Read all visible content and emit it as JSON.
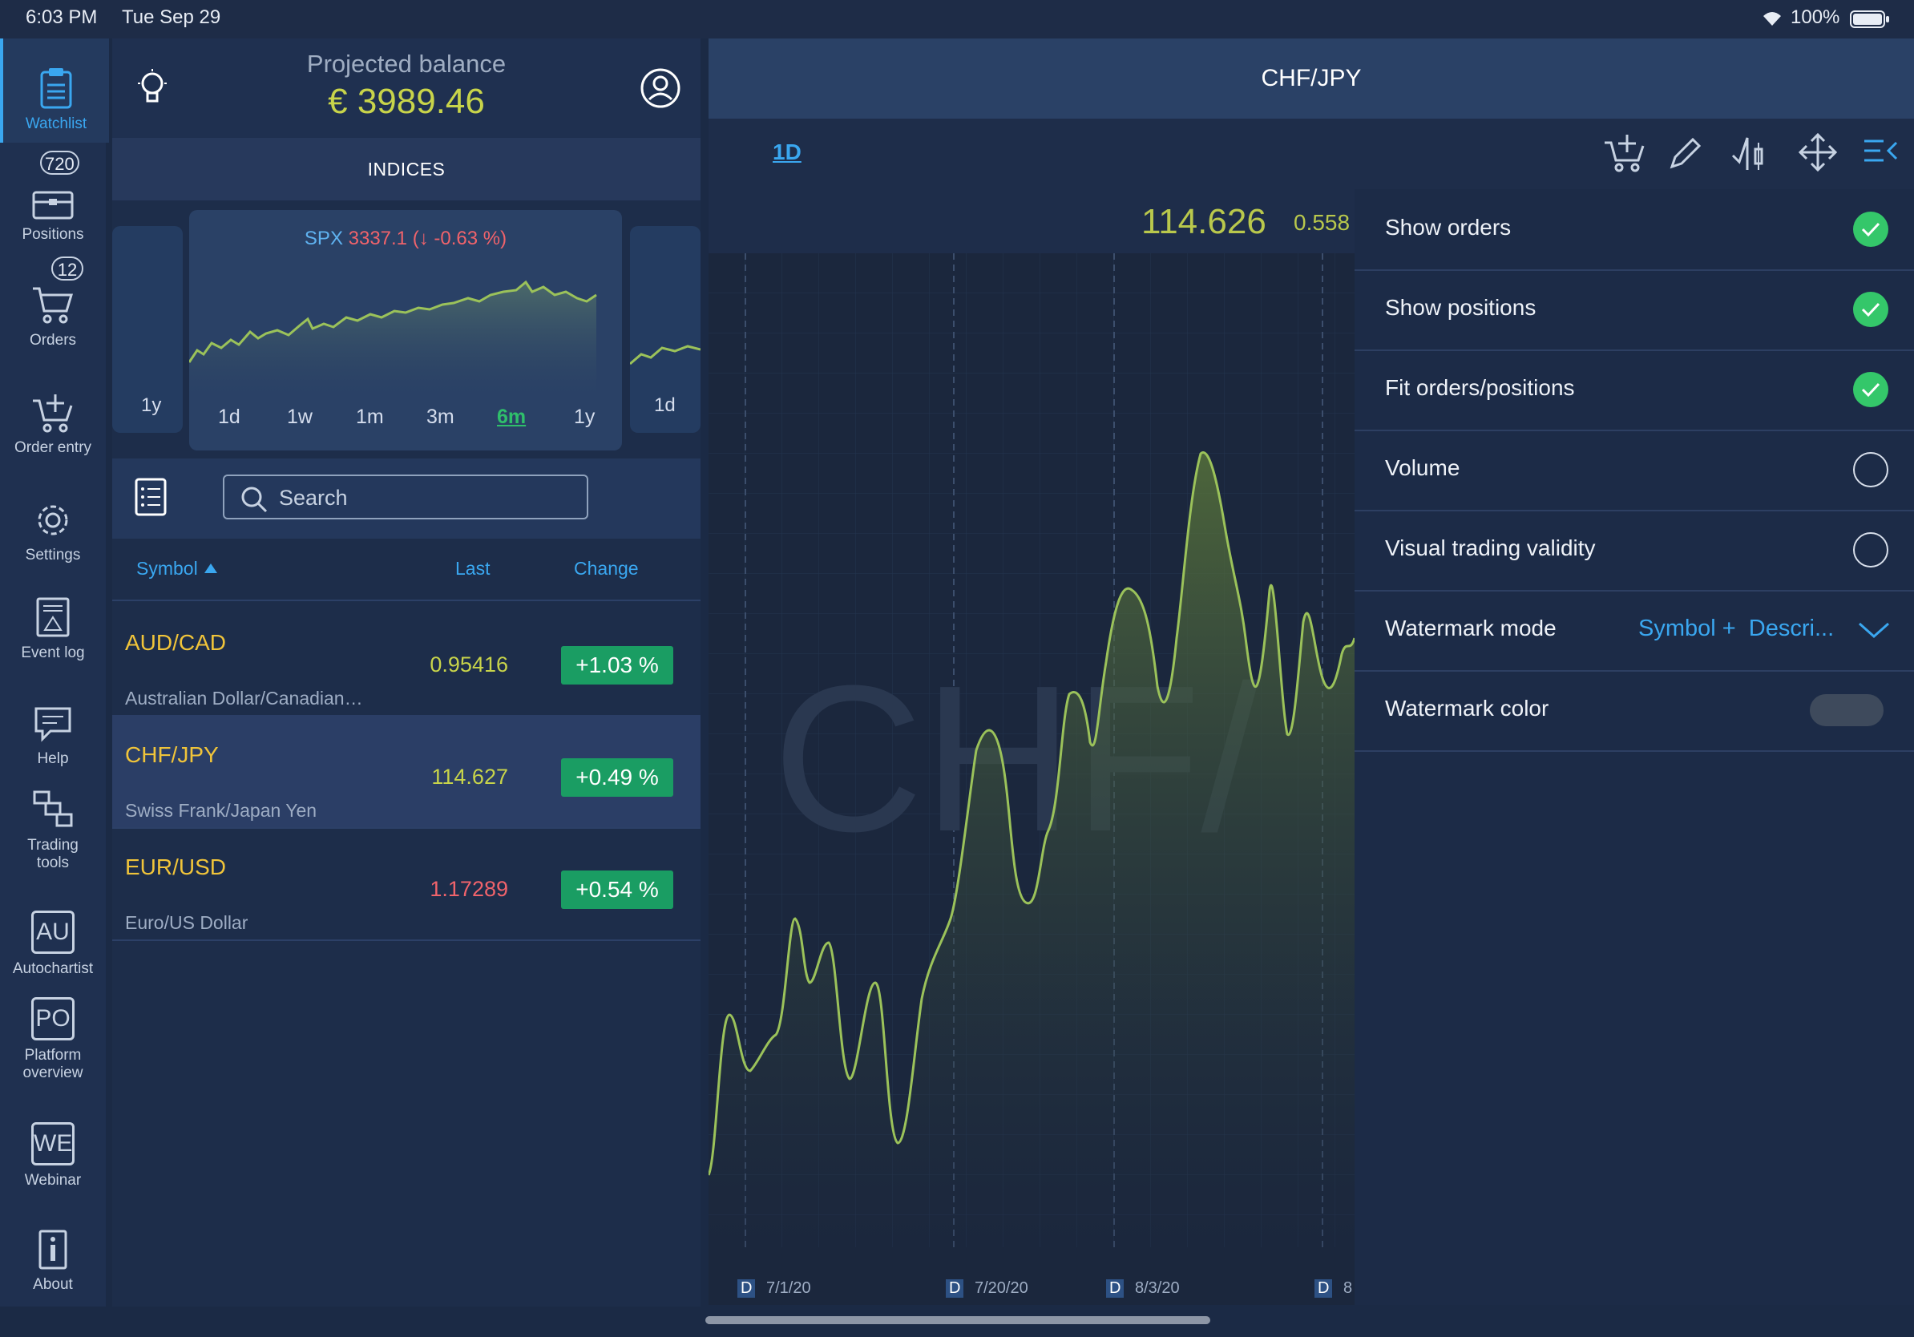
{
  "status_bar": {
    "time": "6:03 PM",
    "date": "Tue Sep 29",
    "battery": "100%"
  },
  "nav": {
    "items": [
      {
        "label": "Watchlist",
        "icon": "clipboard-icon"
      },
      {
        "label": "Positions",
        "icon": "briefcase-icon",
        "badge": "720"
      },
      {
        "label": "Orders",
        "icon": "cart-icon",
        "badge": "12"
      },
      {
        "label": "Order entry",
        "icon": "cart-plus-icon"
      },
      {
        "label": "Settings",
        "icon": "gear-icon"
      },
      {
        "label": "Event log",
        "icon": "event-log-icon"
      },
      {
        "label": "Help",
        "icon": "chat-icon"
      },
      {
        "label": "Trading tools",
        "icon": "tools-icon"
      },
      {
        "label": "Autochartist",
        "icon": "AU"
      },
      {
        "label": "Platform overview",
        "icon": "PO"
      },
      {
        "label": "Webinar",
        "icon": "WE"
      },
      {
        "label": "About",
        "icon": "info-icon"
      }
    ]
  },
  "header": {
    "title": "Projected balance",
    "balance": "€ 3989.46"
  },
  "indices": {
    "label": "INDICES",
    "left_peek_tab": "1y",
    "right_peek_tab": "1d",
    "card": {
      "symbol": "SPX",
      "value": "3337.1",
      "change": "(↓ -0.63 %)",
      "tabs": [
        "1d",
        "1w",
        "1m",
        "3m",
        "6m",
        "1y"
      ],
      "active_tab": "6m"
    }
  },
  "search": {
    "placeholder": "Search"
  },
  "table": {
    "columns": {
      "symbol": "Symbol",
      "last": "Last",
      "change": "Change"
    },
    "rows": [
      {
        "symbol": "AUD/CAD",
        "description": "Australian Dollar/Canadian…",
        "last": "0.95416",
        "change": "+1.03 %",
        "last_color": "#c8d44a"
      },
      {
        "symbol": "CHF/JPY",
        "description": "Swiss Frank/Japan Yen",
        "last": "114.627",
        "change": "+0.49 %",
        "last_color": "#c8d44a"
      },
      {
        "symbol": "EUR/USD",
        "description": "Euro/US Dollar",
        "last": "1.17289",
        "change": "+0.54 %",
        "last_color": "#f0636b"
      }
    ]
  },
  "chart": {
    "title": "CHF/JPY",
    "timeframe": "1D",
    "price": "114.626",
    "price_change": "0.558",
    "watermark": "CHF/",
    "dates": [
      "7/1/20",
      "7/20/20",
      "8/3/20",
      "8"
    ],
    "date_marker": "D"
  },
  "settings_panel": {
    "options": [
      {
        "label": "Show orders",
        "state": "on"
      },
      {
        "label": "Show positions",
        "state": "on"
      },
      {
        "label": "Fit orders/positions",
        "state": "on"
      },
      {
        "label": "Volume",
        "state": "off"
      },
      {
        "label": "Visual trading validity",
        "state": "off"
      },
      {
        "label": "Watermark mode",
        "value": "Symbol +  Descri..."
      },
      {
        "label": "Watermark color"
      }
    ]
  },
  "colors": {
    "accent": "#3aa7f0",
    "positive": "#1a9d63",
    "negative": "#f0636b",
    "symbol": "#f0c43a",
    "line": "#9bc25a"
  }
}
